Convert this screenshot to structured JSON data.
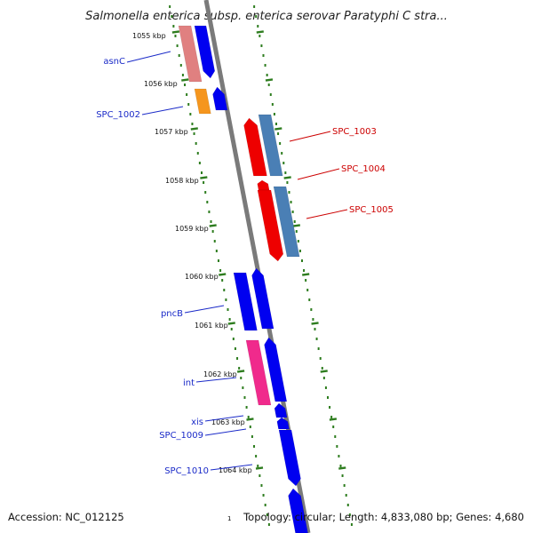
{
  "title": "Salmonella enterica subsp. enterica serovar Paratyphi C stra...",
  "footer": {
    "accession": "Accession: NC_012125",
    "topology": "Topology: circular; Length: 4,833,080 bp; Genes: 4,680",
    "small_mark": "1"
  },
  "colors": {
    "backbone": "#7a7a7a",
    "tick": "#2e7d1f",
    "label_blue": "#1a2ac8",
    "label_red": "#cc0000",
    "gene_blue": "#0000f0",
    "gene_red": "#ee0000",
    "gene_steel": "#4a7fb5",
    "gene_salmon": "#e08080",
    "gene_orange": "#f5961e",
    "gene_pink": "#f02a8c"
  },
  "kbp_ticks": [
    "1055 kbp",
    "1056 kbp",
    "1057 kbp",
    "1058 kbp",
    "1059 kbp",
    "1060 kbp",
    "1061 kbp",
    "1062 kbp",
    "1063 kbp",
    "1064 kbp"
  ],
  "gene_labels_left": [
    "asnC",
    "SPC_1002",
    "pncB",
    "int",
    "xis",
    "SPC_1009",
    "SPC_1010"
  ],
  "gene_labels_right": [
    "SPC_1003",
    "SPC_1004",
    "SPC_1005"
  ]
}
